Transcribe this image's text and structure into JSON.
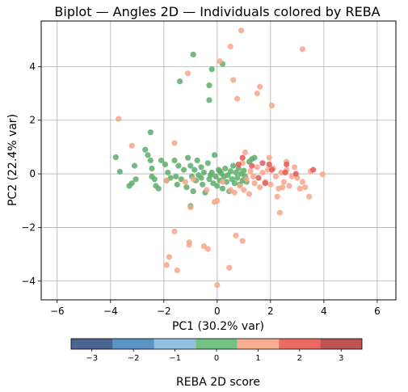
{
  "chart_data": {
    "type": "scatter",
    "title": "Biplot — Angles 2D — Individuals colored by REBA",
    "xlabel": "PC1 (30.2% var)",
    "ylabel": "PC2 (22.4% var)",
    "xlim": [
      -6.6,
      6.7
    ],
    "ylim": [
      -4.7,
      5.7
    ],
    "xticks": [
      -6,
      -4,
      -2,
      0,
      2,
      4,
      6
    ],
    "yticks": [
      -4,
      -2,
      0,
      2,
      4
    ],
    "grid": true,
    "colorbar": {
      "label": "REBA 2D score",
      "ticks": [
        -3,
        -2,
        -1,
        0,
        1,
        2,
        3
      ],
      "range": [
        -3.5,
        3.5
      ],
      "bins": [
        {
          "from": -3.5,
          "to": -2.5,
          "color": "#4a6592"
        },
        {
          "from": -2.5,
          "to": -1.5,
          "color": "#5b93c4"
        },
        {
          "from": -1.5,
          "to": -0.5,
          "color": "#94c1e0"
        },
        {
          "from": -0.5,
          "to": 0.5,
          "color": "#74c184"
        },
        {
          "from": 0.5,
          "to": 1.5,
          "color": "#f9ae92"
        },
        {
          "from": 1.5,
          "to": 2.5,
          "color": "#ea6a63"
        },
        {
          "from": 2.5,
          "to": 3.5,
          "color": "#bf5252"
        }
      ]
    },
    "series": [
      {
        "value": 0,
        "color": "#5cae6a",
        "points": [
          [
            -0.9,
            4.45
          ],
          [
            0.2,
            4.1
          ],
          [
            -1.4,
            3.45
          ],
          [
            -0.2,
            3.9
          ],
          [
            -0.3,
            3.3
          ],
          [
            -0.3,
            2.75
          ],
          [
            -3.8,
            0.62
          ],
          [
            -3.65,
            0.08
          ],
          [
            -3.1,
            0.3
          ],
          [
            -3.05,
            -0.2
          ],
          [
            -3.2,
            -0.35
          ],
          [
            -2.7,
            0.9
          ],
          [
            -2.6,
            0.7
          ],
          [
            -2.5,
            0.5
          ],
          [
            -2.45,
            0.2
          ],
          [
            -2.35,
            -0.2
          ],
          [
            -2.3,
            -0.45
          ],
          [
            -2.45,
            -0.1
          ],
          [
            -2.2,
            -0.55
          ],
          [
            -2.1,
            0.5
          ],
          [
            -1.95,
            0.35
          ],
          [
            -1.85,
            0.05
          ],
          [
            -1.75,
            -0.15
          ],
          [
            -1.6,
            0.5
          ],
          [
            -1.55,
            -0.1
          ],
          [
            -1.5,
            -0.4
          ],
          [
            -1.45,
            0.3
          ],
          [
            -1.35,
            -0.2
          ],
          [
            -1.25,
            0.15
          ],
          [
            -1.15,
            -0.5
          ],
          [
            -1.0,
            0.3
          ],
          [
            -0.95,
            -0.1
          ],
          [
            -0.9,
            -0.65
          ],
          [
            -0.85,
            0.15
          ],
          [
            -0.8,
            -0.25
          ],
          [
            -0.75,
            0.5
          ],
          [
            -0.7,
            -0.05
          ],
          [
            -0.6,
            0.25
          ],
          [
            -0.55,
            -0.4
          ],
          [
            -0.5,
            0.05
          ],
          [
            -0.45,
            -0.7
          ],
          [
            -0.35,
            0.4
          ],
          [
            -0.3,
            -0.2
          ],
          [
            -0.2,
            0.05
          ],
          [
            -0.15,
            -0.35
          ],
          [
            -0.1,
            0.7
          ],
          [
            -0.05,
            -0.1
          ],
          [
            0.0,
            -0.45
          ],
          [
            0.05,
            0.15
          ],
          [
            0.1,
            -0.25
          ],
          [
            0.15,
            0.02
          ],
          [
            0.2,
            -0.55
          ],
          [
            0.25,
            -0.1
          ],
          [
            0.3,
            0.2
          ],
          [
            0.35,
            -0.3
          ],
          [
            0.4,
            -0.05
          ],
          [
            0.45,
            -0.65
          ],
          [
            0.5,
            0.1
          ],
          [
            0.55,
            -0.2
          ],
          [
            0.6,
            0.3
          ],
          [
            0.65,
            -0.35
          ],
          [
            0.7,
            0.05
          ],
          [
            0.75,
            -0.15
          ],
          [
            0.8,
            0.2
          ],
          [
            0.85,
            -0.4
          ],
          [
            0.9,
            0.0
          ],
          [
            0.95,
            -0.25
          ],
          [
            1.0,
            0.12
          ],
          [
            1.1,
            -0.3
          ],
          [
            1.2,
            0.45
          ],
          [
            1.3,
            0.55
          ],
          [
            1.4,
            0.6
          ],
          [
            1.05,
            -0.1
          ],
          [
            -1.1,
            0.6
          ],
          [
            -0.6,
            -0.15
          ],
          [
            0.1,
            0.1
          ],
          [
            -0.25,
            -0.05
          ],
          [
            -1.0,
            -1.2
          ],
          [
            -2.5,
            1.55
          ],
          [
            -3.3,
            -0.45
          ],
          [
            -1.9,
            -0.25
          ]
        ]
      },
      {
        "value": 1,
        "color": "#f9a68a",
        "points": [
          [
            0.9,
            5.35
          ],
          [
            0.5,
            4.75
          ],
          [
            0.1,
            4.2
          ],
          [
            -1.1,
            3.75
          ],
          [
            0.6,
            3.5
          ],
          [
            1.6,
            3.25
          ],
          [
            1.5,
            3.0
          ],
          [
            0.75,
            2.8
          ],
          [
            2.05,
            2.55
          ],
          [
            3.2,
            4.65
          ],
          [
            -3.7,
            2.05
          ],
          [
            -1.6,
            1.15
          ],
          [
            -3.2,
            1.05
          ],
          [
            -1.9,
            -0.25
          ],
          [
            -1.2,
            -0.3
          ],
          [
            -0.9,
            -0.2
          ],
          [
            -1.0,
            -1.25
          ],
          [
            -0.1,
            -1.05
          ],
          [
            -1.6,
            -2.15
          ],
          [
            -1.05,
            -2.65
          ],
          [
            -1.05,
            -2.55
          ],
          [
            -1.8,
            -3.1
          ],
          [
            -1.9,
            -3.4
          ],
          [
            -1.5,
            -3.6
          ],
          [
            -0.5,
            -2.7
          ],
          [
            -0.35,
            -2.8
          ],
          [
            0.7,
            -2.3
          ],
          [
            0.95,
            -2.5
          ],
          [
            0.45,
            -3.5
          ],
          [
            0.0,
            -4.15
          ],
          [
            1.0,
            -0.6
          ],
          [
            1.1,
            -0.2
          ],
          [
            1.25,
            0.1
          ],
          [
            1.4,
            -0.35
          ],
          [
            1.5,
            0.25
          ],
          [
            1.6,
            -0.5
          ],
          [
            1.7,
            0.05
          ],
          [
            1.8,
            -0.3
          ],
          [
            1.9,
            0.15
          ],
          [
            2.0,
            -0.4
          ],
          [
            2.1,
            0.2
          ],
          [
            2.2,
            -0.1
          ],
          [
            2.3,
            -0.55
          ],
          [
            2.4,
            0.05
          ],
          [
            2.5,
            -0.3
          ],
          [
            2.6,
            0.15
          ],
          [
            2.7,
            -0.45
          ],
          [
            2.8,
            -0.1
          ],
          [
            2.9,
            0.25
          ],
          [
            3.0,
            -0.15
          ],
          [
            3.1,
            -0.55
          ],
          [
            3.3,
            -0.5
          ],
          [
            3.5,
            0.1
          ],
          [
            3.45,
            -0.85
          ],
          [
            3.95,
            -0.02
          ],
          [
            2.35,
            -1.45
          ],
          [
            1.2,
            -0.75
          ],
          [
            0.0,
            -1.0
          ],
          [
            0.5,
            -0.6
          ],
          [
            0.85,
            -0.45
          ],
          [
            -0.4,
            -0.6
          ],
          [
            0.2,
            -0.3
          ],
          [
            1.95,
            0.6
          ],
          [
            1.05,
            0.8
          ],
          [
            2.6,
            0.45
          ],
          [
            0.95,
            0.4
          ],
          [
            2.25,
            -0.85
          ],
          [
            2.45,
            -0.5
          ],
          [
            3.2,
            -0.3
          ],
          [
            0.65,
            -0.7
          ],
          [
            1.35,
            -0.1
          ]
        ]
      },
      {
        "value": 2,
        "color": "#e05a55",
        "points": [
          [
            0.8,
            0.35
          ],
          [
            1.7,
            0.4
          ],
          [
            1.95,
            0.35
          ],
          [
            2.05,
            0.15
          ],
          [
            2.6,
            0.35
          ],
          [
            2.55,
            0.05
          ],
          [
            2.95,
            0.0
          ],
          [
            3.6,
            0.15
          ],
          [
            1.55,
            -0.15
          ],
          [
            1.8,
            -0.35
          ],
          [
            0.95,
            0.6
          ],
          [
            1.3,
            0.3
          ]
        ]
      }
    ]
  }
}
